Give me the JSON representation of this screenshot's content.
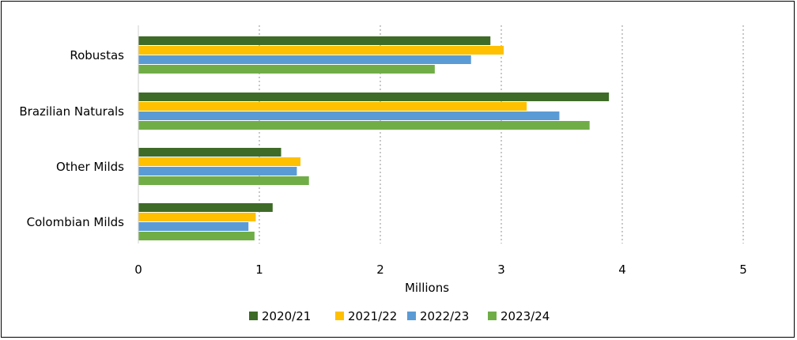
{
  "chart_data": {
    "type": "bar",
    "orientation": "horizontal",
    "categories": [
      "Robustas",
      "Brazilian Naturals",
      "Other Milds",
      "Colombian Milds"
    ],
    "series": [
      {
        "name": "2020/21",
        "color": "#3e6b27",
        "values": [
          2.91,
          3.89,
          1.18,
          1.11
        ]
      },
      {
        "name": "2021/22",
        "color": "#ffc000",
        "values": [
          3.02,
          3.21,
          1.34,
          0.97
        ]
      },
      {
        "name": "2022/23",
        "color": "#5b9bd5",
        "values": [
          2.75,
          3.48,
          1.31,
          0.91
        ]
      },
      {
        "name": "2023/24",
        "color": "#70ad47",
        "values": [
          2.45,
          3.73,
          1.41,
          0.96
        ]
      }
    ],
    "xlabel": "Millions",
    "xlim": [
      0,
      5
    ],
    "xticks": [
      "0",
      "1",
      "2",
      "3",
      "4",
      "5"
    ],
    "grid": "vertical-dotted",
    "legend_position": "bottom"
  }
}
